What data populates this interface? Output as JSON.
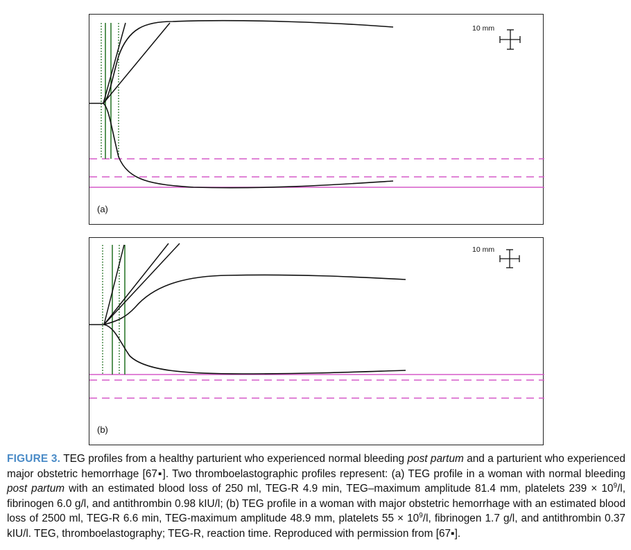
{
  "panels": [
    {
      "id": "a",
      "label": "(a)",
      "scale_label": "10 mm"
    },
    {
      "id": "b",
      "label": "(b)",
      "scale_label": "10 mm"
    }
  ],
  "caption": {
    "label": "FIGURE 3.",
    "p1": " TEG profiles from a healthy parturient who experienced normal bleeding ",
    "i1": "post partum",
    "p2": " and a parturient who experienced major obstetric hemorrhage [67",
    "p3": "]. Two thromboelastographic profiles represent: (a) TEG profile in a woman with normal bleeding ",
    "i2": "post partum",
    "p4": " with an estimated blood loss of 250 ml, TEG-R 4.9 min, TEG–maximum amplitude 81.4 mm, platelets 239 × 10",
    "sup1": "9",
    "p5": "/l, fibrinogen 6.0 g/l, and antithrombin 0.98 kIU/l; (b) TEG profile in a woman with major obstetric hemorrhage with an estimated blood loss of 2500 ml, TEG-R 6.6 min, TEG-maximum amplitude 48.9 mm, platelets 55 × 10",
    "sup2": "9",
    "p6": "/l, fibrinogen 1.7 g/l, and antithrombin 0.37 kIU/l. TEG, thromboelastography; TEG-R, reaction time. Reproduced with permission from [67",
    "p7": "].",
    "ref_marker": "▪"
  }
}
